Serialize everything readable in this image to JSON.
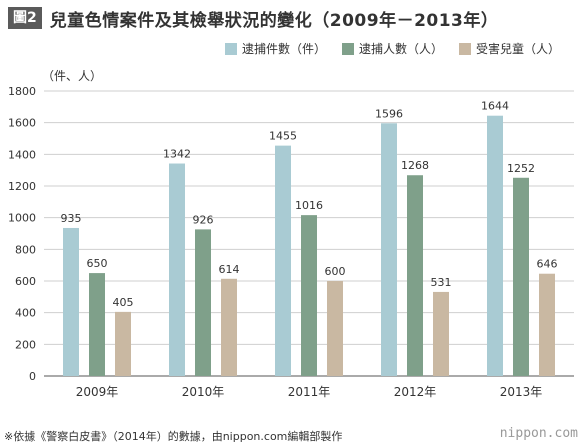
{
  "header": {
    "figure_tag": "圖2",
    "title": "兒童色情案件及其檢舉狀況的變化（2009年－2013年）"
  },
  "colors": {
    "cases": "#a9cbd3",
    "arrests": "#7fa08a",
    "victims": "#c9b8a2"
  },
  "chart_data": {
    "type": "bar",
    "title": "兒童色情案件及其檢舉狀況的變化（2009年－2013年）",
    "ylabel": "（件、人）",
    "xlabel": "",
    "ylim": [
      0,
      1800
    ],
    "yticks": [
      0,
      200,
      400,
      600,
      800,
      1000,
      1200,
      1400,
      1600,
      1800
    ],
    "grid": true,
    "legend_position": "top-right",
    "categories": [
      "2009年",
      "2010年",
      "2011年",
      "2012年",
      "2013年"
    ],
    "series": [
      {
        "name": "逮捕件數（件）",
        "values": [
          935,
          1342,
          1455,
          1596,
          1644
        ]
      },
      {
        "name": "逮捕人數（人）",
        "values": [
          650,
          926,
          1016,
          1268,
          1252
        ]
      },
      {
        "name": "受害兒童（人）",
        "values": [
          405,
          614,
          600,
          531,
          646
        ]
      }
    ]
  },
  "footer": {
    "note": "※依據《警察白皮書》（2014年）的數據，由nippon.com編輯部製作",
    "brand": "nippon.com"
  }
}
